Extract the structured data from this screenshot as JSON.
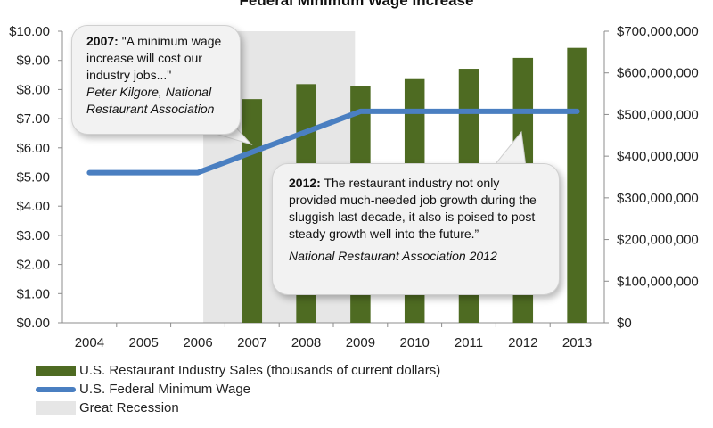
{
  "chart_data": {
    "type": "bar",
    "title": "Federal Minimum Wage Increase",
    "categories": [
      "2004",
      "2005",
      "2006",
      "2007",
      "2008",
      "2009",
      "2010",
      "2011",
      "2012",
      "2013"
    ],
    "left_axis": {
      "ylim": [
        0,
        10
      ],
      "ticks": [
        "$0.00",
        "$1.00",
        "$2.00",
        "$3.00",
        "$4.00",
        "$5.00",
        "$6.00",
        "$7.00",
        "$8.00",
        "$9.00",
        "$10.00"
      ]
    },
    "right_axis": {
      "ylim": [
        0,
        700000000
      ],
      "ticks": [
        "$0",
        "$100,000,000",
        "$200,000,000",
        "$300,000,000",
        "$400,000,000",
        "$500,000,000",
        "$600,000,000",
        "$700,000,000"
      ]
    },
    "series": [
      {
        "name": "U.S. Restaurant Industry Sales (thousands of current dollars)",
        "kind": "bar",
        "axis": "right",
        "color": "#4e6b22",
        "values": [
          null,
          null,
          null,
          537000000,
          573000000,
          569000000,
          585000000,
          610000000,
          636000000,
          660000000
        ]
      },
      {
        "name": "U.S. Federal Minimum Wage",
        "kind": "line",
        "axis": "left",
        "color": "#4a7fc1",
        "values": [
          5.15,
          5.15,
          5.15,
          5.85,
          6.55,
          7.25,
          7.25,
          7.25,
          7.25,
          7.25
        ]
      }
    ],
    "shaded_region": {
      "name": "Great Recession",
      "from": "2007",
      "to": "2009",
      "color": "#e6e6e6"
    },
    "legend_position": "bottom-left",
    "grid": false
  },
  "callouts": {
    "c2007": {
      "year": "2007:",
      "quote": " \"A minimum wage increase will cost our industry jobs...\"",
      "source": "Peter Kilgore, National Restaurant Association"
    },
    "c2012": {
      "year": "2012:",
      "quote": " The restaurant industry not only provided much-needed job growth during the sluggish last decade, it also is poised to post steady growth well into the future.”",
      "source": "National Restaurant Association 2012"
    }
  }
}
